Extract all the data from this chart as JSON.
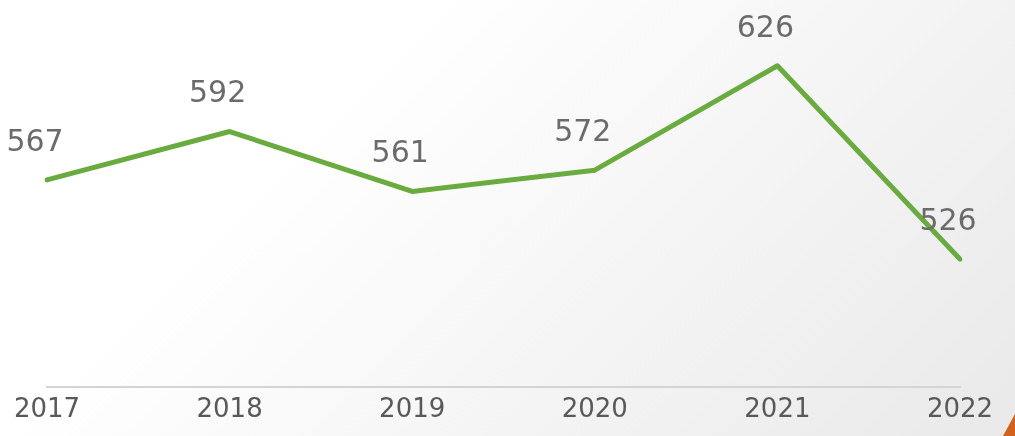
{
  "chart_data": {
    "type": "line",
    "categories": [
      "2017",
      "2018",
      "2019",
      "2020",
      "2021",
      "2022"
    ],
    "series": [
      {
        "color": "#6aab40",
        "values": [
          567,
          592,
          561,
          572,
          626,
          526
        ]
      }
    ],
    "data_labels": true,
    "grid": false,
    "legend": false,
    "marker": "none",
    "line_style": "solid",
    "tick_labels": "x"
  }
}
